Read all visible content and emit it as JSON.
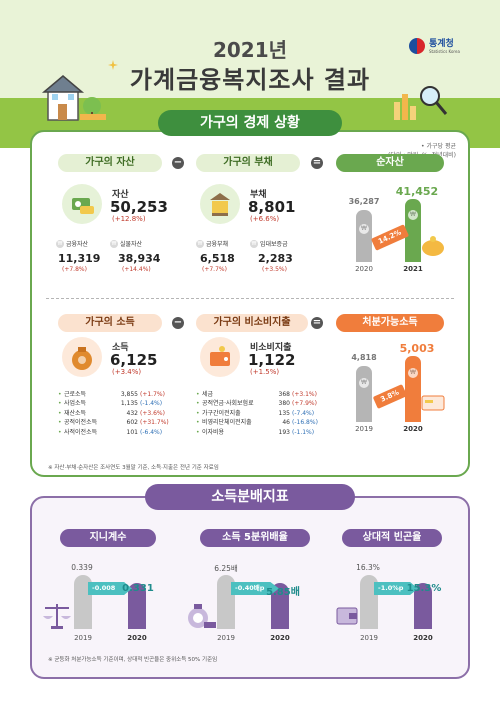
{
  "header": {
    "title_year": "2021년",
    "title_main": "가계금융복지조사 결과",
    "logo_name": "통계청",
    "logo_sub": "Statistics Korea"
  },
  "section1": {
    "title": "가구의 경제 상황",
    "unit_line1": "• 가구당 평균",
    "unit_line2": "(단위 : 만원, %, 전년대비)",
    "assets": {
      "pill": "가구의 자산",
      "label": "자산",
      "value": "50,253",
      "pct": "(+12.8%)",
      "sub1_label": "금융자산",
      "sub1_value": "11,319",
      "sub1_pct": "(+7.8%)",
      "sub2_label": "실물자산",
      "sub2_value": "38,934",
      "sub2_pct": "(+14.4%)"
    },
    "debt": {
      "pill": "가구의 부채",
      "label": "부채",
      "value": "8,801",
      "pct": "(+6.6%)",
      "sub1_label": "금융부채",
      "sub1_value": "6,518",
      "sub1_pct": "(+7.7%)",
      "sub2_label": "임대보증금",
      "sub2_value": "2,283",
      "sub2_pct": "(+3.5%)"
    },
    "net": {
      "pill": "순자산",
      "v2020": "36,287",
      "v2021": "41,452",
      "y2020": "2020",
      "y2021": "2021",
      "growth": "14.2%"
    },
    "income": {
      "pill": "가구의 소득",
      "label": "소득",
      "value": "6,125",
      "pct": "(+3.4%)",
      "items": [
        {
          "name": "근로소득",
          "num": "3,855",
          "pct": "(+1.7%)",
          "color": "red"
        },
        {
          "name": "사업소득",
          "num": "1,135",
          "pct": "(-1.4%)",
          "color": "blue"
        },
        {
          "name": "재산소득",
          "num": "432",
          "pct": "(+3.6%)",
          "color": "red"
        },
        {
          "name": "공적이전소득",
          "num": "602",
          "pct": "(+31.7%)",
          "color": "red"
        },
        {
          "name": "사적이전소득",
          "num": "101",
          "pct": "(-6.4%)",
          "color": "blue"
        }
      ]
    },
    "nonconsumption": {
      "pill": "가구의 비소비지출",
      "label": "비소비지출",
      "value": "1,122",
      "pct": "(+1.5%)",
      "items": [
        {
          "name": "세금",
          "num": "368",
          "pct": "(+3.1%)",
          "color": "red"
        },
        {
          "name": "공적연금·사회보험료",
          "num": "380",
          "pct": "(+7.9%)",
          "color": "red"
        },
        {
          "name": "가구간이전지출",
          "num": "135",
          "pct": "(-7.4%)",
          "color": "blue"
        },
        {
          "name": "비영리단체이전지출",
          "num": "46",
          "pct": "(-16.8%)",
          "color": "blue"
        },
        {
          "name": "이자비용",
          "num": "193",
          "pct": "(-1.1%)",
          "color": "blue"
        }
      ]
    },
    "disposable": {
      "pill": "처분가능소득",
      "v2019": "4,818",
      "v2020": "5,003",
      "y2019": "2019",
      "y2020": "2020",
      "growth": "3.8%"
    },
    "note": "※ 자산·부채·순자산은 조사연도 3월말 기준, 소득·지출은 전년 기준 자료임"
  },
  "section2": {
    "title": "소득분배지표",
    "gini": {
      "pill": "지니계수",
      "v2019": "0.339",
      "change": "-0.008",
      "v2020": "0.331",
      "y2019": "2019",
      "y2020": "2020"
    },
    "quintile": {
      "pill": "소득 5분위배율",
      "v2019": "6.25배",
      "change": "-0.40배p",
      "v2020": "5.85배",
      "y2019": "2019",
      "y2020": "2020"
    },
    "poverty": {
      "pill": "상대적 빈곤율",
      "v2019": "16.3%",
      "change": "-1.0%p",
      "v2020": "15.3%",
      "y2019": "2019",
      "y2020": "2020"
    },
    "note": "※ 균등화 처분가능소득 기준이며, 상대적 빈곤율은 중위소득 50% 기준임"
  },
  "colors": {
    "green": "#6aa84f",
    "orange": "#f07d3c",
    "purple": "#7a5a9e",
    "teal": "#4cc0c0"
  }
}
